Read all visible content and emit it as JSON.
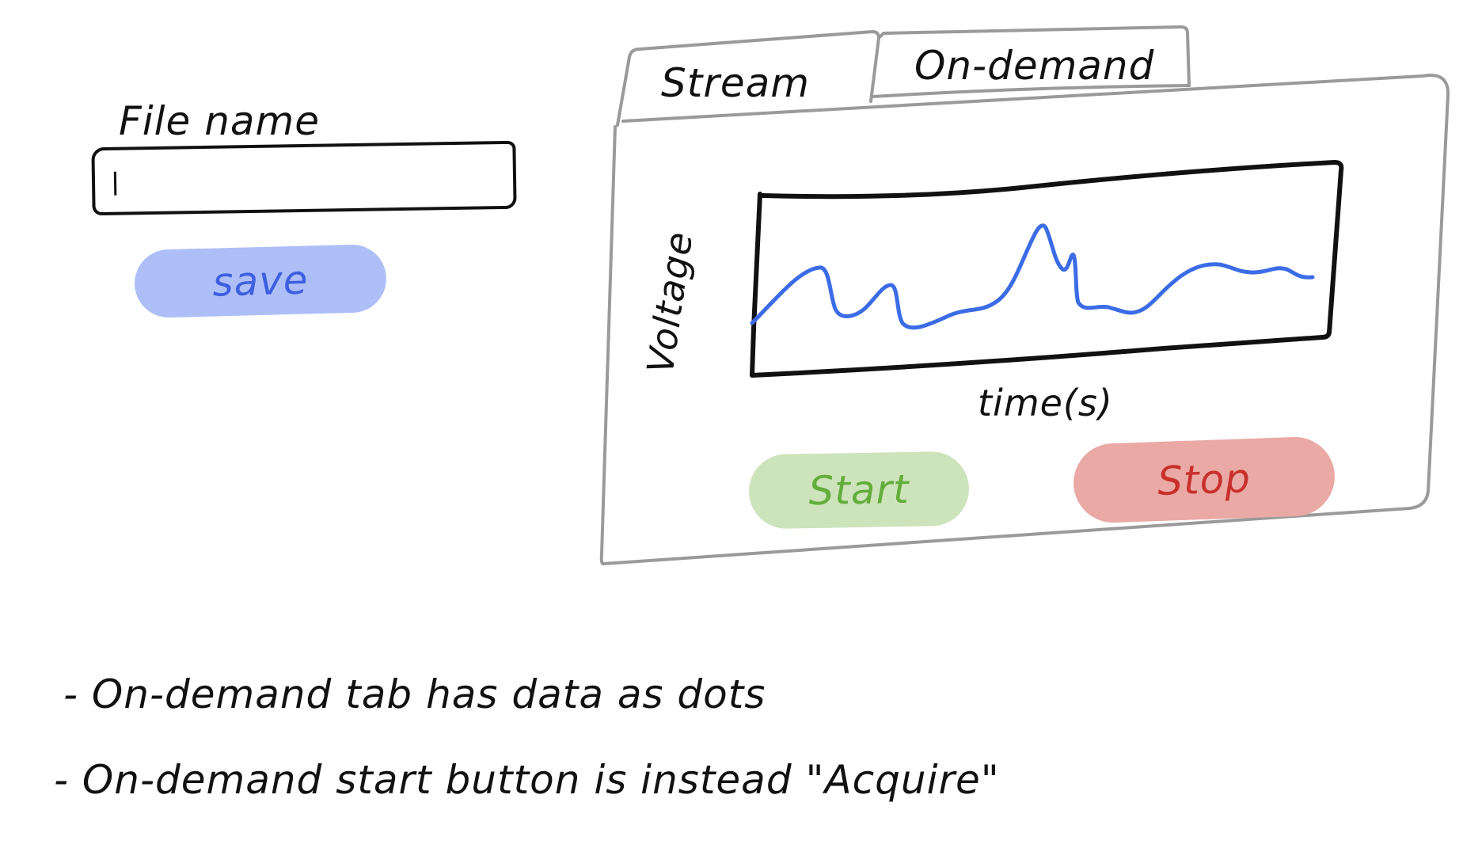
{
  "form": {
    "file_name_label": "File name",
    "file_name_value": "",
    "save_label": "save"
  },
  "window": {
    "tabs": [
      {
        "label": "Stream",
        "selected": true
      },
      {
        "label": "On-demand",
        "selected": false
      }
    ],
    "chart": {
      "ylabel": "Voltage",
      "xlabel": "time(s)",
      "series_color": "#3b6ce6"
    },
    "start_label": "Start",
    "stop_label": "Stop"
  },
  "notes": [
    "- On-demand tab has data as dots",
    "- On-demand start button is instead \"Acquire\""
  ],
  "colors": {
    "ink": "#111111",
    "window_frame": "#9a9a9a",
    "save_fill": "#aebff8",
    "save_text": "#3d5fe0",
    "start_fill": "#cde3bb",
    "start_text": "#63ad3a",
    "stop_fill": "#eaa9a5",
    "stop_text": "#c9302c"
  }
}
